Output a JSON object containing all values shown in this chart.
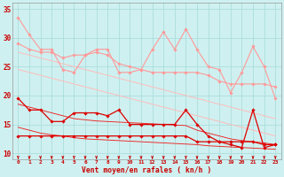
{
  "title": "",
  "xlabel": "Vent moyen/en rafales ( kn/h )",
  "bg_color": "#cff0f0",
  "grid_color": "#aadddd",
  "x_labels": [
    "0",
    "1",
    "2",
    "3",
    "4",
    "5",
    "6",
    "7",
    "8",
    "9",
    "10",
    "11",
    "12",
    "13",
    "14",
    "15",
    "16",
    "17",
    "18",
    "19",
    "20",
    "21",
    "22",
    "23"
  ],
  "series": [
    {
      "color": "#ff9999",
      "linewidth": 0.8,
      "marker": "D",
      "markersize": 1.8,
      "values": [
        33.5,
        30.5,
        28,
        28,
        24.5,
        24,
        27,
        28,
        28,
        24,
        24,
        24.5,
        28,
        31,
        28,
        31.5,
        28,
        25,
        24.5,
        20.5,
        24,
        28.5,
        25,
        19.5
      ]
    },
    {
      "color": "#ff9999",
      "linewidth": 0.8,
      "marker": "D",
      "markersize": 1.8,
      "values": [
        29,
        28,
        27.5,
        27.5,
        26.5,
        27,
        27,
        27.5,
        27,
        25.5,
        25,
        24.5,
        24,
        24,
        24,
        24,
        24,
        23.5,
        22.5,
        22,
        22,
        22,
        22,
        21.5
      ]
    },
    {
      "color": "#ffbbbb",
      "linewidth": 0.7,
      "marker": null,
      "markersize": 0,
      "values": [
        27.5,
        27.0,
        26.5,
        26.0,
        25.5,
        25.0,
        24.5,
        24.0,
        23.5,
        23.0,
        22.5,
        22.0,
        21.5,
        21.0,
        20.5,
        20.0,
        19.5,
        19.0,
        18.5,
        18.0,
        17.5,
        17.0,
        16.5,
        16.0
      ]
    },
    {
      "color": "#ffbbbb",
      "linewidth": 0.7,
      "marker": null,
      "markersize": 0,
      "values": [
        24.5,
        24.0,
        23.5,
        23.0,
        22.5,
        22.0,
        21.5,
        21.0,
        20.5,
        20.0,
        19.5,
        19.0,
        18.5,
        18.0,
        17.5,
        17.0,
        16.5,
        16.0,
        15.5,
        15.0,
        14.5,
        14.0,
        13.5,
        13.0
      ]
    },
    {
      "color": "#dd0000",
      "linewidth": 0.9,
      "marker": "D",
      "markersize": 1.8,
      "values": [
        19.5,
        17.5,
        17.5,
        15.5,
        15.5,
        17,
        17,
        17,
        16.5,
        17.5,
        15,
        15,
        15,
        15,
        15,
        17.5,
        15,
        13,
        12,
        11.5,
        11,
        17.5,
        11,
        11.5
      ]
    },
    {
      "color": "#dd0000",
      "linewidth": 0.9,
      "marker": "D",
      "markersize": 1.8,
      "values": [
        13,
        13,
        13,
        13,
        13,
        13,
        13,
        13,
        13,
        13,
        13,
        13,
        13,
        13,
        13,
        13,
        12,
        12,
        12,
        12,
        12,
        12,
        11.5,
        11.5
      ]
    },
    {
      "color": "#ee2222",
      "linewidth": 0.65,
      "marker": null,
      "markersize": 0,
      "values": [
        18.5,
        18.0,
        17.5,
        17.0,
        16.5,
        16.0,
        15.8,
        15.6,
        15.5,
        15.4,
        15.3,
        15.2,
        15.1,
        15.0,
        14.9,
        14.8,
        14.0,
        13.5,
        13.0,
        12.5,
        12.2,
        12.0,
        11.8,
        11.5
      ]
    },
    {
      "color": "#ee2222",
      "linewidth": 0.65,
      "marker": null,
      "markersize": 0,
      "values": [
        14.5,
        14.0,
        13.5,
        13.2,
        13.0,
        12.7,
        12.5,
        12.4,
        12.3,
        12.2,
        12.1,
        12.0,
        11.9,
        11.8,
        11.7,
        11.6,
        11.5,
        11.3,
        11.2,
        11.1,
        11.0,
        10.9,
        10.8,
        10.7
      ]
    }
  ],
  "ylim": [
    9,
    36
  ],
  "yticks": [
    10,
    15,
    20,
    25,
    30,
    35
  ],
  "arrow_color": "#cc0000",
  "tick_color": "#cc0000",
  "label_color": "#cc0000"
}
